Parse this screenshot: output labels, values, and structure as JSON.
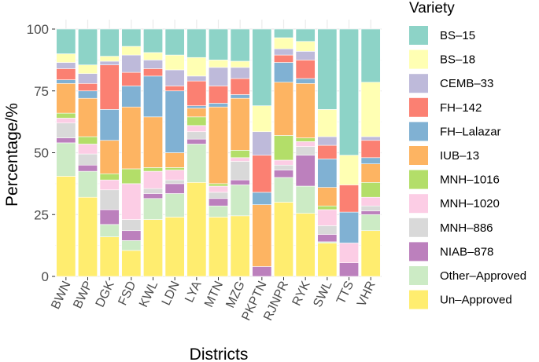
{
  "chart_data": {
    "type": "bar",
    "stacked": true,
    "title": "",
    "xlabel": "Districts",
    "ylabel": "Percentage/%",
    "ylim": [
      0,
      100
    ],
    "yticks": [
      0,
      25,
      50,
      75,
      100
    ],
    "grid": true,
    "legend_title": "Variety",
    "legend_position": "right",
    "categories": [
      "BWN",
      "BWP",
      "DGK",
      "FSD",
      "KWL",
      "LDN",
      "LYA",
      "MTN",
      "MZG",
      "PKPTN",
      "RJNPR",
      "RYK",
      "SWL",
      "TTS",
      "VHR"
    ],
    "series": [
      {
        "name": "Un–Approved",
        "color": "#FFED6F",
        "values": [
          40.5,
          32.0,
          16.0,
          10.5,
          23.0,
          24.0,
          38.0,
          24.0,
          24.5,
          0.0,
          30.0,
          25.5,
          13.5,
          0.0,
          18.5
        ]
      },
      {
        "name": "Other–Approved",
        "color": "#CCEBC5",
        "values": [
          13.5,
          10.5,
          5.0,
          4.0,
          8.5,
          9.5,
          15.5,
          4.5,
          12.5,
          0.0,
          10.0,
          11.0,
          0.5,
          0.0,
          6.5
        ]
      },
      {
        "name": "NIAB–878",
        "color": "#BC80BD",
        "values": [
          2.0,
          2.5,
          6.0,
          4.0,
          2.0,
          4.0,
          2.0,
          3.0,
          2.0,
          4.0,
          3.0,
          12.5,
          3.0,
          5.5,
          1.5
        ]
      },
      {
        "name": "MNH–886",
        "color": "#D9D9D9",
        "values": [
          6.0,
          4.5,
          8.0,
          4.5,
          2.0,
          1.5,
          3.0,
          2.5,
          7.5,
          0.0,
          2.0,
          3.5,
          3.5,
          0.0,
          2.0
        ]
      },
      {
        "name": "MNH–1020",
        "color": "#FCCDE5",
        "values": [
          2.0,
          4.0,
          4.0,
          14.5,
          7.0,
          4.0,
          2.5,
          2.5,
          1.5,
          0.0,
          2.0,
          2.0,
          6.5,
          8.0,
          3.5
        ]
      },
      {
        "name": "MNH–1016",
        "color": "#B3DE69",
        "values": [
          2.0,
          3.0,
          2.5,
          6.0,
          1.5,
          1.0,
          3.5,
          1.0,
          3.0,
          0.0,
          10.0,
          1.5,
          1.5,
          0.0,
          6.0
        ]
      },
      {
        "name": "IUB–13",
        "color": "#FDB462",
        "values": [
          12.0,
          15.5,
          13.5,
          25.0,
          20.5,
          6.0,
          3.5,
          31.0,
          21.0,
          25.0,
          21.5,
          22.0,
          7.5,
          0.0,
          7.5
        ]
      },
      {
        "name": "FH–Lalazar",
        "color": "#80B1D3",
        "values": [
          1.5,
          3.0,
          12.5,
          8.5,
          16.5,
          25.0,
          1.0,
          1.5,
          1.5,
          5.0,
          8.0,
          2.0,
          11.5,
          12.5,
          2.5
        ]
      },
      {
        "name": "FH–142",
        "color": "#FB8072",
        "values": [
          4.5,
          3.0,
          18.0,
          5.5,
          3.0,
          2.0,
          10.0,
          7.0,
          6.5,
          15.0,
          3.0,
          7.5,
          5.5,
          11.0,
          7.0
        ]
      },
      {
        "name": "CEMB–33",
        "color": "#BEBADA",
        "values": [
          2.5,
          4.0,
          1.5,
          7.0,
          3.5,
          6.5,
          2.0,
          7.5,
          4.5,
          9.5,
          2.5,
          3.5,
          3.5,
          0.0,
          1.5
        ]
      },
      {
        "name": "BS–18",
        "color": "#FFFFB3",
        "values": [
          3.5,
          3.5,
          2.0,
          3.5,
          3.0,
          6.0,
          7.5,
          3.0,
          2.5,
          10.5,
          4.5,
          4.0,
          11.0,
          12.0,
          22.0
        ]
      },
      {
        "name": "BS–15",
        "color": "#8DD3C7",
        "values": [
          10.0,
          14.5,
          11.0,
          7.0,
          9.5,
          10.5,
          11.5,
          12.5,
          13.0,
          31.0,
          3.5,
          5.0,
          32.5,
          51.0,
          21.5
        ]
      }
    ],
    "legend_order": [
      "BS–15",
      "BS–18",
      "CEMB–33",
      "FH–142",
      "FH–Lalazar",
      "IUB–13",
      "MNH–1016",
      "MNH–1020",
      "MNH–886",
      "NIAB–878",
      "Other–Approved",
      "Un–Approved"
    ]
  }
}
